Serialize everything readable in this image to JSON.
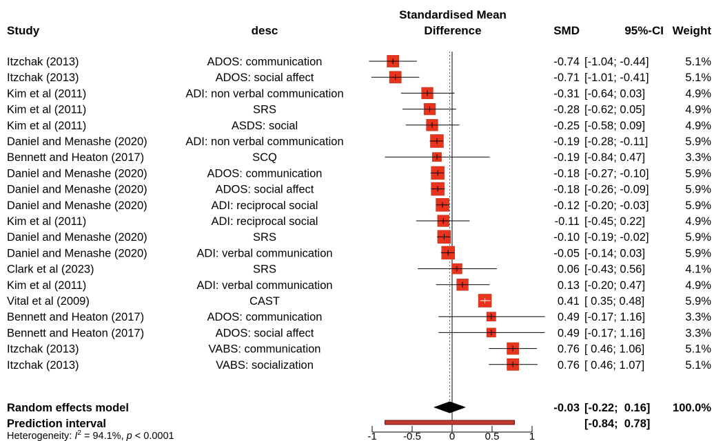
{
  "headers": {
    "study": "Study",
    "desc": "desc",
    "plot_line1": "Standardised Mean",
    "plot_line2": "Difference",
    "smd": "SMD",
    "ci": "95%-CI",
    "weight": "Weight"
  },
  "rows": [
    {
      "study": "Itzchak (2013)",
      "desc": "ADOS: communication",
      "smd_text": "-0.74",
      "ci_text": "[-1.04; -0.44]",
      "weight_text": "5.1%"
    },
    {
      "study": "Itzchak (2013)",
      "desc": "ADOS: social affect",
      "smd_text": "-0.71",
      "ci_text": "[-1.01; -0.41]",
      "weight_text": "5.1%"
    },
    {
      "study": "Kim et al (2011)",
      "desc": "ADI: non verbal communication",
      "smd_text": "-0.31",
      "ci_text": "[-0.64;  0.03]",
      "weight_text": "4.9%"
    },
    {
      "study": "Kim et al (2011)",
      "desc": "SRS",
      "smd_text": "-0.28",
      "ci_text": "[-0.62;  0.05]",
      "weight_text": "4.9%"
    },
    {
      "study": "Kim et al (2011)",
      "desc": "ASDS: social",
      "smd_text": "-0.25",
      "ci_text": "[-0.58;  0.09]",
      "weight_text": "4.9%"
    },
    {
      "study": "Daniel and Menashe (2020)",
      "desc": "ADI: non verbal communication",
      "smd_text": "-0.19",
      "ci_text": "[-0.28; -0.11]",
      "weight_text": "5.9%"
    },
    {
      "study": "Bennett and Heaton (2017)",
      "desc": "SCQ",
      "smd_text": "-0.19",
      "ci_text": "[-0.84;  0.47]",
      "weight_text": "3.3%"
    },
    {
      "study": "Daniel and Menashe (2020)",
      "desc": "ADOS: communication",
      "smd_text": "-0.18",
      "ci_text": "[-0.27; -0.10]",
      "weight_text": "5.9%"
    },
    {
      "study": "Daniel and Menashe (2020)",
      "desc": "ADOS: social affect",
      "smd_text": "-0.18",
      "ci_text": "[-0.26; -0.09]",
      "weight_text": "5.9%"
    },
    {
      "study": "Daniel and Menashe (2020)",
      "desc": "ADI: reciprocal social",
      "smd_text": "-0.12",
      "ci_text": "[-0.20; -0.03]",
      "weight_text": "5.9%"
    },
    {
      "study": "Kim et al (2011)",
      "desc": "ADI: reciprocal social",
      "smd_text": "-0.11",
      "ci_text": "[-0.45;  0.22]",
      "weight_text": "4.9%"
    },
    {
      "study": "Daniel and Menashe (2020)",
      "desc": "SRS",
      "smd_text": "-0.10",
      "ci_text": "[-0.19; -0.02]",
      "weight_text": "5.9%"
    },
    {
      "study": "Daniel and Menashe (2020)",
      "desc": "ADI: verbal communication",
      "smd_text": "-0.05",
      "ci_text": "[-0.14;  0.03]",
      "weight_text": "5.9%"
    },
    {
      "study": "Clark et al (2023)",
      "desc": "SRS",
      "smd_text": "0.06",
      "ci_text": "[-0.43;  0.56]",
      "weight_text": "4.1%"
    },
    {
      "study": "Kim et al (2011)",
      "desc": "ADI: verbal communication",
      "smd_text": "0.13",
      "ci_text": "[-0.20;  0.47]",
      "weight_text": "4.9%"
    },
    {
      "study": "Vital et al (2009)",
      "desc": "CAST",
      "smd_text": "0.41",
      "ci_text": "[ 0.35;  0.48]",
      "weight_text": "5.9%"
    },
    {
      "study": "Bennett and Heaton (2017)",
      "desc": "ADOS: communication",
      "smd_text": "0.49",
      "ci_text": "[-0.17;  1.16]",
      "weight_text": "3.3%"
    },
    {
      "study": "Bennett and Heaton (2017)",
      "desc": "ADOS: social affect",
      "smd_text": "0.49",
      "ci_text": "[-0.17;  1.16]",
      "weight_text": "3.3%"
    },
    {
      "study": "Itzchak (2013)",
      "desc": "VABS: communication",
      "smd_text": "0.76",
      "ci_text": "[ 0.46;  1.06]",
      "weight_text": "5.1%"
    },
    {
      "study": "Itzchak (2013)",
      "desc": "VABS: socialization",
      "smd_text": "0.76",
      "ci_text": "[ 0.46;  1.07]",
      "weight_text": "5.1%"
    }
  ],
  "summary": {
    "random_label": "Random effects model",
    "random_smd_text": "-0.03",
    "random_ci_text": "[-0.22;  0.16]",
    "random_weight_text": "100.0%",
    "prediction_label": "Prediction interval",
    "prediction_ci_text": "[-0.84;  0.78]",
    "heterogeneity_prefix": "Heterogeneity: ",
    "heterogeneity_i2_symbol": "I",
    "heterogeneity_i2_sup": "2",
    "heterogeneity_i2_value": " = 94.1%, ",
    "heterogeneity_p_symbol": "p",
    "heterogeneity_p_value": " < 0.0001"
  },
  "colors": {
    "square_fill": "#e8341c",
    "square_stroke": "#b22a18",
    "diamond": "#000000",
    "prediction_fill": "#c0392b",
    "prediction_stroke": "#6b0f0f",
    "reference_line": "#000000",
    "dotted_line": "#555555"
  },
  "chart_data": {
    "type": "forest",
    "x_label": "",
    "x_ticks": [
      -1,
      -0.5,
      0,
      0.5,
      1
    ],
    "x_tick_labels": [
      "-1",
      "-0.5",
      "0",
      "0.5",
      "1"
    ],
    "x_range": [
      -1,
      1
    ],
    "studies": [
      {
        "est": -0.74,
        "lo": -1.04,
        "hi": -0.44,
        "weight": 5.1
      },
      {
        "est": -0.71,
        "lo": -1.01,
        "hi": -0.41,
        "weight": 5.1
      },
      {
        "est": -0.31,
        "lo": -0.64,
        "hi": 0.03,
        "weight": 4.9
      },
      {
        "est": -0.28,
        "lo": -0.62,
        "hi": 0.05,
        "weight": 4.9
      },
      {
        "est": -0.25,
        "lo": -0.58,
        "hi": 0.09,
        "weight": 4.9
      },
      {
        "est": -0.19,
        "lo": -0.28,
        "hi": -0.11,
        "weight": 5.9
      },
      {
        "est": -0.19,
        "lo": -0.84,
        "hi": 0.47,
        "weight": 3.3
      },
      {
        "est": -0.18,
        "lo": -0.27,
        "hi": -0.1,
        "weight": 5.9
      },
      {
        "est": -0.18,
        "lo": -0.26,
        "hi": -0.09,
        "weight": 5.9
      },
      {
        "est": -0.12,
        "lo": -0.2,
        "hi": -0.03,
        "weight": 5.9
      },
      {
        "est": -0.11,
        "lo": -0.45,
        "hi": 0.22,
        "weight": 4.9
      },
      {
        "est": -0.1,
        "lo": -0.19,
        "hi": -0.02,
        "weight": 5.9
      },
      {
        "est": -0.05,
        "lo": -0.14,
        "hi": 0.03,
        "weight": 5.9
      },
      {
        "est": 0.06,
        "lo": -0.43,
        "hi": 0.56,
        "weight": 4.1
      },
      {
        "est": 0.13,
        "lo": -0.2,
        "hi": 0.47,
        "weight": 4.9
      },
      {
        "est": 0.41,
        "lo": 0.35,
        "hi": 0.48,
        "weight": 5.9
      },
      {
        "est": 0.49,
        "lo": -0.17,
        "hi": 1.16,
        "weight": 3.3
      },
      {
        "est": 0.49,
        "lo": -0.17,
        "hi": 1.16,
        "weight": 3.3
      },
      {
        "est": 0.76,
        "lo": 0.46,
        "hi": 1.06,
        "weight": 5.1
      },
      {
        "est": 0.76,
        "lo": 0.46,
        "hi": 1.07,
        "weight": 5.1
      }
    ],
    "random_effects": {
      "est": -0.03,
      "lo": -0.22,
      "hi": 0.16,
      "weight": 100.0
    },
    "prediction_interval": {
      "lo": -0.84,
      "hi": 0.78
    },
    "reference_line": 0,
    "overall_line": -0.03
  }
}
